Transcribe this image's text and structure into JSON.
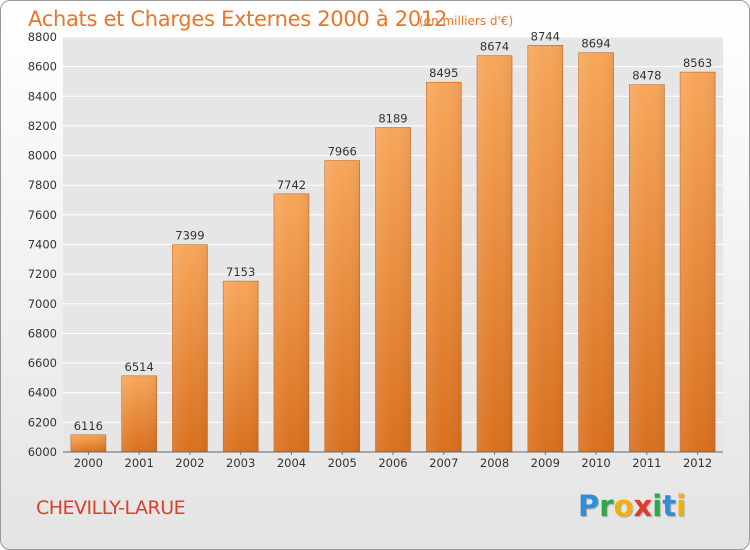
{
  "chart_data": {
    "type": "bar",
    "title": "Achats et Charges Externes 2000 à 2012",
    "subtitle": "(en milliers d'€)",
    "categories": [
      "2000",
      "2001",
      "2002",
      "2003",
      "2004",
      "2005",
      "2006",
      "2007",
      "2008",
      "2009",
      "2010",
      "2011",
      "2012"
    ],
    "values": [
      6116,
      6514,
      7399,
      7153,
      7742,
      7966,
      8189,
      8495,
      8674,
      8744,
      8694,
      8478,
      8563
    ],
    "yticks": [
      6000,
      6200,
      6400,
      6600,
      6800,
      7000,
      7200,
      7400,
      7600,
      7800,
      8000,
      8200,
      8400,
      8600,
      8800
    ],
    "ylim": [
      6000,
      8800
    ],
    "xlabel": "",
    "ylabel": "",
    "grid": true,
    "bar_color": "#f08a34"
  },
  "location": "CHEVILLY-LARUE",
  "logo": {
    "letters": [
      "P",
      "r",
      "o",
      "x",
      "i",
      "t",
      "i"
    ],
    "colors": [
      "#2f8fd6",
      "#2fa84a",
      "#f2b10a",
      "#e23b2a",
      "#2fa84a",
      "#2f8fd6",
      "#f2b10a"
    ]
  }
}
